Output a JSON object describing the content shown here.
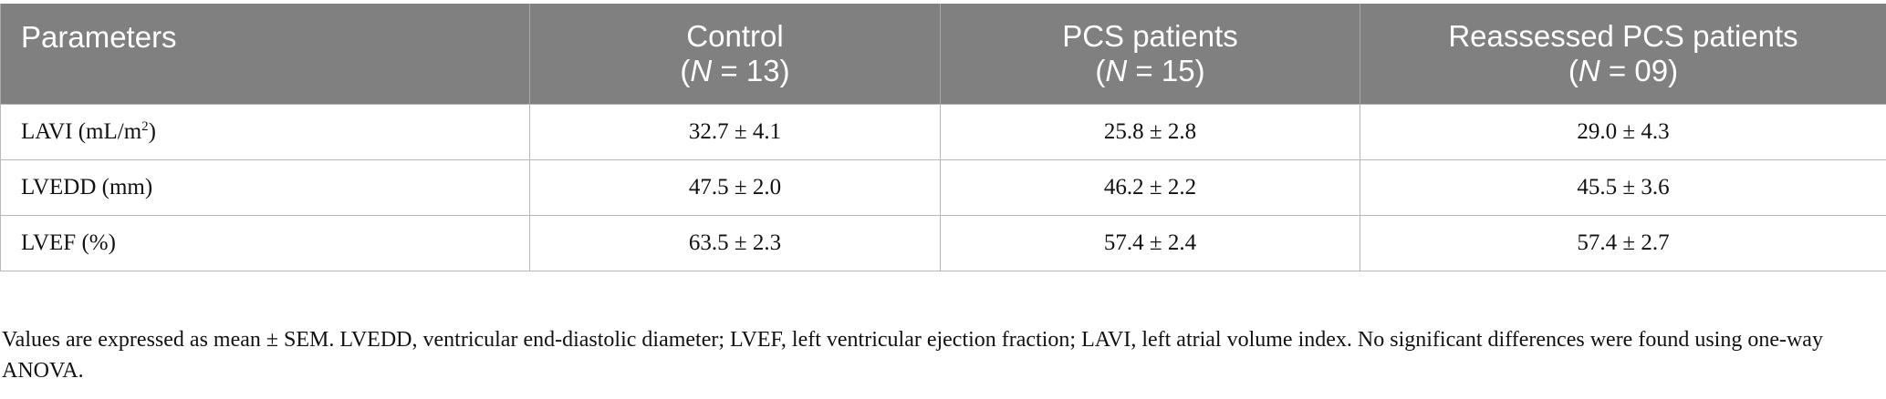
{
  "table": {
    "headers": [
      {
        "line1": "Parameters",
        "n_label": "",
        "n_value": ""
      },
      {
        "line1": "Control",
        "n_label": "N",
        "n_value": " = 13"
      },
      {
        "line1": "PCS patients",
        "n_label": "N",
        "n_value": " = 15"
      },
      {
        "line1": "Reassessed PCS patients",
        "n_label": "N",
        "n_value": " = 09"
      }
    ],
    "rows": [
      {
        "label": "LAVI (mL/m",
        "label_sup": "2",
        "label_tail": ")",
        "values": [
          "32.7 ± 4.1",
          "25.8 ± 2.8",
          "29.0 ± 4.3"
        ]
      },
      {
        "label": "LVEDD (mm)",
        "label_sup": "",
        "label_tail": "",
        "values": [
          "47.5 ± 2.0",
          "46.2 ± 2.2",
          "45.5 ± 3.6"
        ]
      },
      {
        "label": "LVEF (%)",
        "label_sup": "",
        "label_tail": "",
        "values": [
          "63.5 ± 2.3",
          "57.4 ± 2.4",
          "57.4 ± 2.7"
        ]
      }
    ]
  },
  "footnote": "Values are expressed as mean ± SEM. LVEDD, ventricular end-diastolic diameter; LVEF, left ventricular ejection fraction; LAVI, left atrial volume index. No significant differences were found using one-way ANOVA.",
  "colors": {
    "header_bg": "#808080",
    "header_text": "#ffffff",
    "border": "#b8b8b8"
  }
}
